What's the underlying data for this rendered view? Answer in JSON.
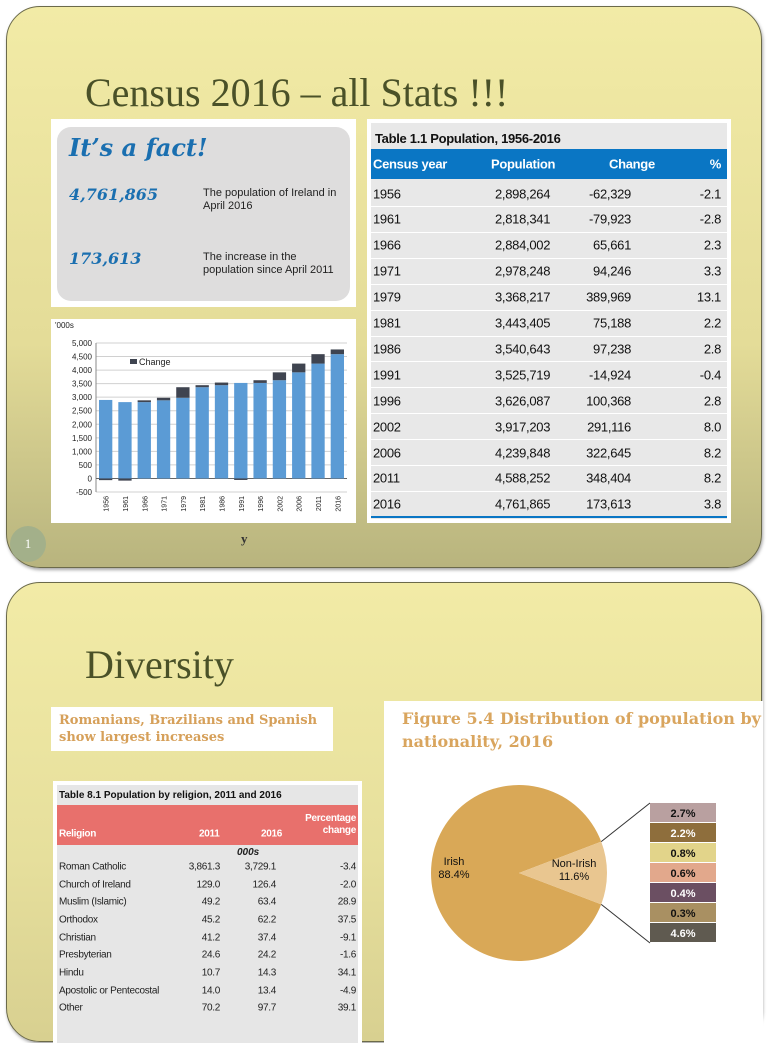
{
  "slide1": {
    "title": "Census 2016 – all Stats !!!",
    "fact": {
      "heading": "It’s a fact!",
      "items": [
        {
          "value": "4,761,865",
          "text": "The population of Ireland in April 2016"
        },
        {
          "value": "173,613",
          "text": "The increase in the population since April 2011"
        }
      ]
    },
    "table": {
      "caption": "Table 1.1   Population, 1956-2016",
      "headers": [
        "Census year",
        "Population",
        "Change",
        "%"
      ],
      "rows": [
        [
          "1956",
          "2,898,264",
          "-62,329",
          "-2.1"
        ],
        [
          "1961",
          "2,818,341",
          "-79,923",
          "-2.8"
        ],
        [
          "1966",
          "2,884,002",
          "65,661",
          "2.3"
        ],
        [
          "1971",
          "2,978,248",
          "94,246",
          "3.3"
        ],
        [
          "1979",
          "3,368,217",
          "389,969",
          "13.1"
        ],
        [
          "1981",
          "3,443,405",
          "75,188",
          "2.2"
        ],
        [
          "1986",
          "3,540,643",
          "97,238",
          "2.8"
        ],
        [
          "1991",
          "3,525,719",
          "-14,924",
          "-0.4"
        ],
        [
          "1996",
          "3,626,087",
          "100,368",
          "2.8"
        ],
        [
          "2002",
          "3,917,203",
          "291,116",
          "8.0"
        ],
        [
          "2006",
          "4,239,848",
          "322,645",
          "8.2"
        ],
        [
          "2011",
          "4,588,252",
          "348,404",
          "8.2"
        ],
        [
          "2016",
          "4,761,865",
          "173,613",
          "3.8"
        ]
      ]
    },
    "footer_text": "y",
    "slide_number": "1"
  },
  "slide2": {
    "title": "Diversity",
    "subtitle": "Romanians, Brazilians and Spanish show largest increases",
    "table": {
      "caption": "Table 8.1  Population by religion, 2011 and 2016",
      "headers": [
        "Religion",
        "2011",
        "2016",
        "Percentage change"
      ],
      "unit": "000s",
      "rows": [
        [
          "Roman Catholic",
          "3,861.3",
          "3,729.1",
          "-3.4"
        ],
        [
          "Church of Ireland",
          "129.0",
          "126.4",
          "-2.0"
        ],
        [
          "Muslim (Islamic)",
          "49.2",
          "63.4",
          "28.9"
        ],
        [
          "Orthodox",
          "45.2",
          "62.2",
          "37.5"
        ],
        [
          "Christian",
          "41.2",
          "37.4",
          "-9.1"
        ],
        [
          "Presbyterian",
          "24.6",
          "24.2",
          "-1.6"
        ],
        [
          "Hindu",
          "10.7",
          "14.3",
          "34.1"
        ],
        [
          "Apostolic or Pentecostal",
          "14.0",
          "13.4",
          "-4.9"
        ],
        [
          "Other",
          "70.2",
          "97.7",
          "39.1"
        ]
      ]
    }
  },
  "chart_data": [
    {
      "type": "bar",
      "stacked": true,
      "ylabel": "'000s",
      "ylim": [
        -500,
        5000
      ],
      "yticks": [
        "-500",
        "0",
        "500",
        "1,000",
        "1,500",
        "2,000",
        "2,500",
        "3,000",
        "3,500",
        "4,000",
        "4,500",
        "5,000"
      ],
      "categories": [
        "1956",
        "1961",
        "1966",
        "1971",
        "1979",
        "1981",
        "1986",
        "1991",
        "1996",
        "2002",
        "2006",
        "2011",
        "2016"
      ],
      "series": [
        {
          "values": [
            2898,
            2818,
            2818,
            2884,
            2978,
            3368,
            3443,
            3526,
            3526,
            3626,
            3917,
            4240,
            4588
          ],
          "color": "#5b9bd5"
        },
        {
          "name": "Change",
          "values": [
            -62,
            -80,
            66,
            94,
            390,
            75,
            97,
            -15,
            100,
            291,
            323,
            348,
            174
          ],
          "color": "#3f4450"
        }
      ],
      "legend": "top-left",
      "grid": true
    },
    {
      "type": "pie",
      "title": "Figure 5.4 Distribution of population by nationality, 2016",
      "slices": [
        {
          "label": "Irish",
          "value": 88.4,
          "color": "#d9a857"
        },
        {
          "label": "Non-Irish",
          "value": 11.6,
          "color": "#e9c690"
        }
      ],
      "breakdown": [
        {
          "value": 2.7,
          "label": "2.7%",
          "color": "#b9a0a0"
        },
        {
          "value": 2.2,
          "label": "2.2%",
          "color": "#8e6e3c"
        },
        {
          "value": 0.8,
          "label": "0.8%",
          "color": "#e2d48a"
        },
        {
          "value": 0.6,
          "label": "0.6%",
          "color": "#e2a88c"
        },
        {
          "value": 0.4,
          "label": "0.4%",
          "color": "#6b4f62"
        },
        {
          "value": 0.3,
          "label": "0.3%",
          "color": "#a99062"
        },
        {
          "value": 4.6,
          "label": "4.6%",
          "color": "#5f5a50"
        }
      ]
    }
  ]
}
